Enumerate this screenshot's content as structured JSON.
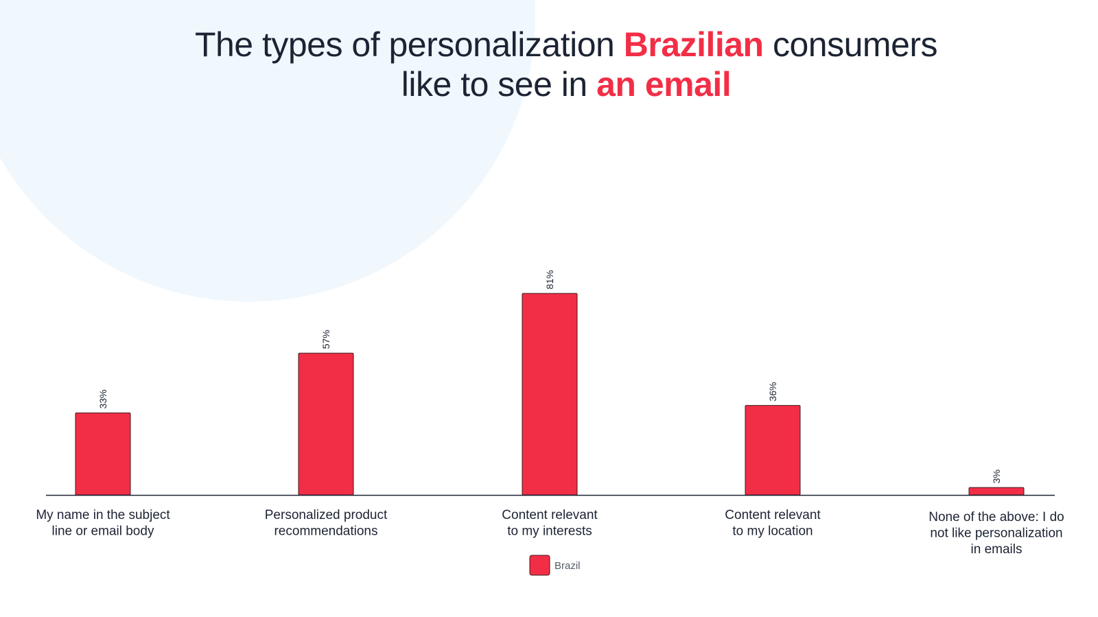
{
  "title": {
    "line1_pre": "The types of personalization ",
    "line1_highlight": "Brazilian",
    "line1_post": " consumers",
    "line2_pre": "like to see in ",
    "line2_highlight": "an email"
  },
  "colors": {
    "accent": "#f22e46",
    "text": "#1c2333",
    "background_circle": "#f0f7fd"
  },
  "chart_data": {
    "type": "bar",
    "categories": [
      [
        "My name in the subject",
        "line or email body"
      ],
      [
        "Personalized product",
        "recommendations"
      ],
      [
        "Content relevant",
        "to my interests"
      ],
      [
        "Content relevant",
        "to my location"
      ],
      [
        "None of the above: I do",
        "not like personalization",
        "in emails"
      ]
    ],
    "series": [
      {
        "name": "Brazil",
        "values": [
          33,
          57,
          81,
          36,
          3
        ],
        "labels": [
          "33%",
          "57%",
          "81%",
          "36%",
          "3%"
        ],
        "color": "#f22e46"
      }
    ],
    "ylim": [
      0,
      100
    ],
    "grid": false,
    "legend_position": "bottom-center",
    "xlabel": "",
    "ylabel": ""
  }
}
